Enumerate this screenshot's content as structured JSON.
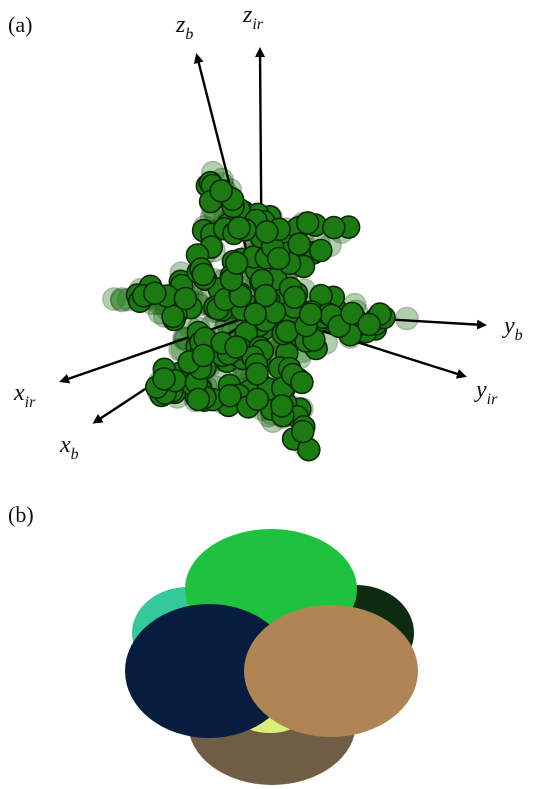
{
  "panels": {
    "a": {
      "label": "(a)",
      "axes": [
        {
          "id": "z_b",
          "base": "z",
          "sub": "b"
        },
        {
          "id": "z_ir",
          "base": "z",
          "sub": "ir"
        },
        {
          "id": "y_b",
          "base": "y",
          "sub": "b"
        },
        {
          "id": "y_ir",
          "base": "y",
          "sub": "ir"
        },
        {
          "id": "x_ir",
          "base": "x",
          "sub": "ir"
        },
        {
          "id": "x_b",
          "base": "x",
          "sub": "b"
        }
      ],
      "particle_color": "#1c7a12",
      "particle_edge": "#0a2a06"
    },
    "b": {
      "label": "(b)",
      "ellipse_colors": {
        "bottom": "#6f5e45",
        "right_back": "#0e2a10",
        "left_back": "#34c998",
        "top": "#1ec23e",
        "highlight": "#d9ef7a",
        "left_front": "#061d40",
        "right_front": "#b08555"
      }
    }
  }
}
